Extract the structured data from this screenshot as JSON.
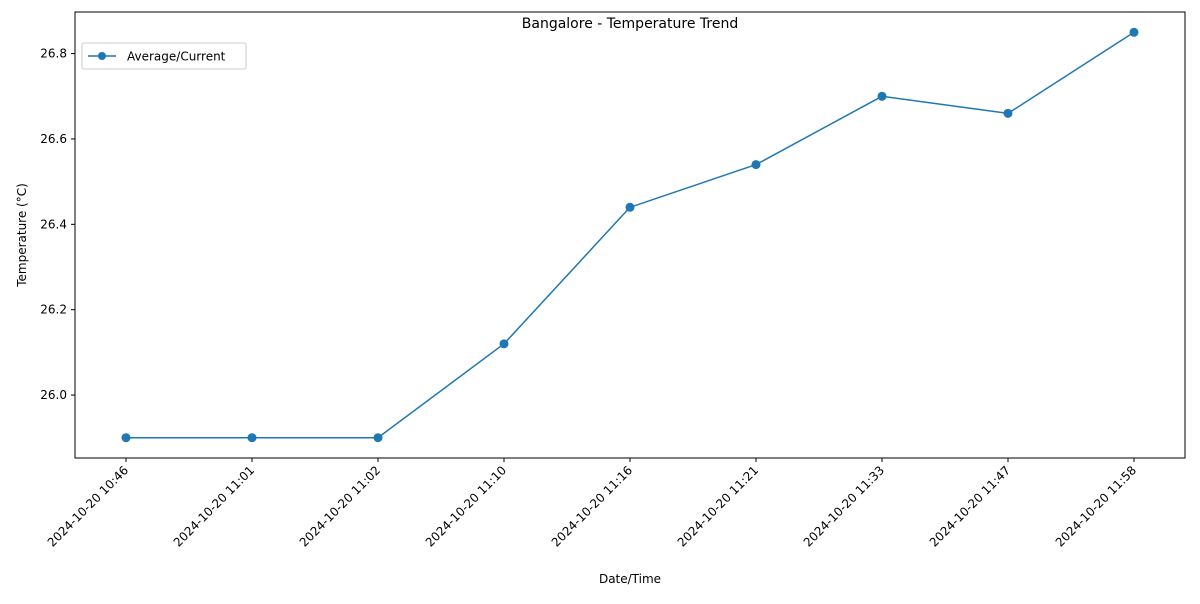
{
  "chart_data": {
    "type": "line",
    "title": "Bangalore - Temperature Trend",
    "xlabel": "Date/Time",
    "ylabel": "Temperature (°C)",
    "categories": [
      "2024-10-20 10:46",
      "2024-10-20 11:01",
      "2024-10-20 11:02",
      "2024-10-20 11:10",
      "2024-10-20 11:16",
      "2024-10-20 11:21",
      "2024-10-20 11:33",
      "2024-10-20 11:47",
      "2024-10-20 11:58"
    ],
    "series": [
      {
        "name": "Average/Current",
        "values": [
          25.9,
          25.9,
          25.9,
          26.12,
          26.44,
          26.54,
          26.7,
          26.66,
          26.85
        ],
        "color": "#1f77b4",
        "marker": "circle"
      }
    ],
    "yticks": [
      26.0,
      26.2,
      26.4,
      26.6,
      26.8
    ],
    "ytick_labels": [
      "26.0",
      "26.2",
      "26.4",
      "26.6",
      "26.8"
    ],
    "ylim": [
      25.8525,
      26.8975
    ],
    "grid": false,
    "legend": "top-left"
  }
}
